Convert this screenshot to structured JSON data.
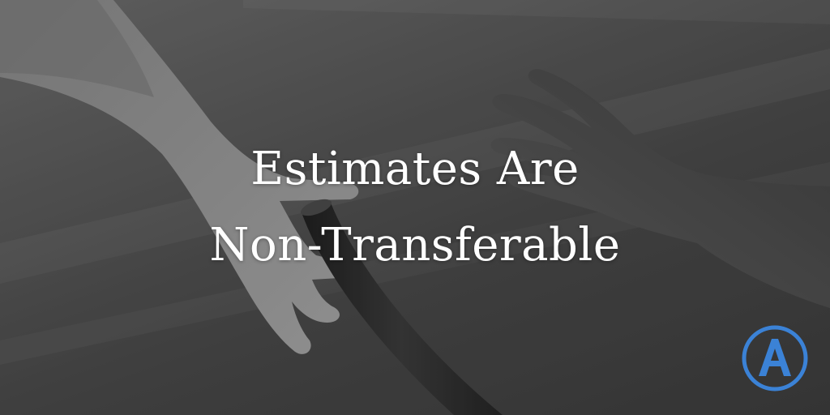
{
  "headline": {
    "line1": "Estimates Are",
    "line2": "Non-Transferable"
  },
  "logo": {
    "icon": "letter-a-circle-logo",
    "color": "#3b82d6"
  },
  "photo": {
    "subject": "hands-passing-relay-baton",
    "tone": "grayscale"
  }
}
